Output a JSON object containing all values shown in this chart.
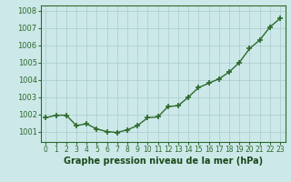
{
  "x": [
    0,
    1,
    2,
    3,
    4,
    5,
    6,
    7,
    8,
    9,
    10,
    11,
    12,
    13,
    14,
    15,
    16,
    17,
    18,
    19,
    20,
    21,
    22,
    23
  ],
  "y": [
    1001.8,
    1001.95,
    1001.95,
    1001.35,
    1001.45,
    1001.15,
    1001.0,
    1000.95,
    1001.1,
    1001.35,
    1001.8,
    1001.85,
    1002.45,
    1002.5,
    1003.0,
    1003.55,
    1003.8,
    1004.05,
    1004.45,
    1005.0,
    1005.8,
    1006.3,
    1007.05,
    1007.55
  ],
  "line_color": "#2d6a2d",
  "marker": "+",
  "marker_size": 4,
  "marker_linewidth": 1.2,
  "line_width": 1.0,
  "bg_color": "#cce8e8",
  "grid_color": "#aacccc",
  "xlabel": "Graphe pression niveau de la mer (hPa)",
  "xlabel_fontsize": 7.0,
  "xlabel_color": "#1a4a1a",
  "yticks": [
    1001,
    1002,
    1003,
    1004,
    1005,
    1006,
    1007,
    1008
  ],
  "ylim": [
    1000.4,
    1008.3
  ],
  "xlim": [
    -0.5,
    23.5
  ],
  "xtick_fontsize": 5.5,
  "ytick_fontsize": 6.0,
  "tick_color": "#2d6a2d",
  "spine_color": "#2d6a2d"
}
